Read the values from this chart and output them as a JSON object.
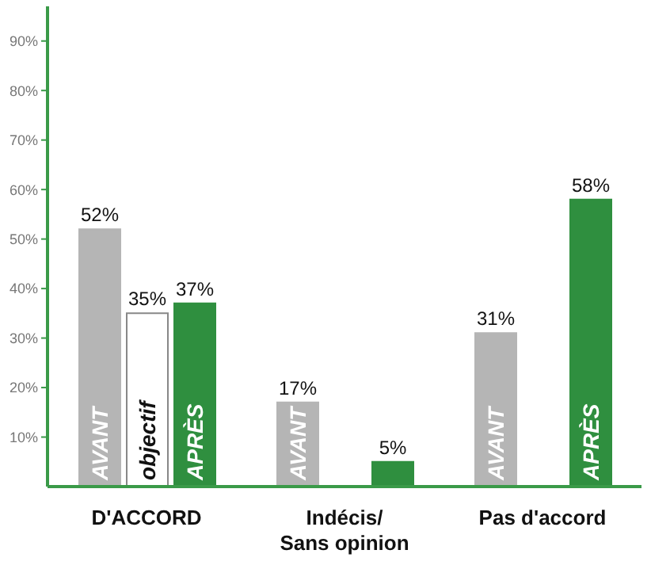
{
  "chart_data": {
    "type": "bar",
    "categories": [
      "D'ACCORD",
      "Indécis/\nSans opinion",
      "Pas d'accord"
    ],
    "series": [
      {
        "name": "AVANT",
        "color": "#b5b5b5",
        "values": [
          52,
          17,
          31
        ],
        "value_labels": [
          "52%",
          "17%",
          "31%"
        ]
      },
      {
        "name": "objectif",
        "color": "#ffffff",
        "values": [
          35,
          null,
          null
        ],
        "value_labels": [
          "35%",
          null,
          null
        ]
      },
      {
        "name": "APRÈS",
        "color": "#2f8f3f",
        "values": [
          37,
          5,
          58
        ],
        "value_labels": [
          "37%",
          "5%",
          "58%"
        ]
      }
    ],
    "ylim": [
      0,
      97
    ],
    "yticks": [
      {
        "value": 10,
        "label": "10%"
      },
      {
        "value": 20,
        "label": "20%"
      },
      {
        "value": 30,
        "label": "30%"
      },
      {
        "value": 40,
        "label": "40%"
      },
      {
        "value": 50,
        "label": "50%"
      },
      {
        "value": 60,
        "label": "60%"
      },
      {
        "value": 70,
        "label": "70%"
      },
      {
        "value": 80,
        "label": "80%"
      },
      {
        "value": 90,
        "label": "90%"
      }
    ],
    "grid": false,
    "legend": false
  }
}
